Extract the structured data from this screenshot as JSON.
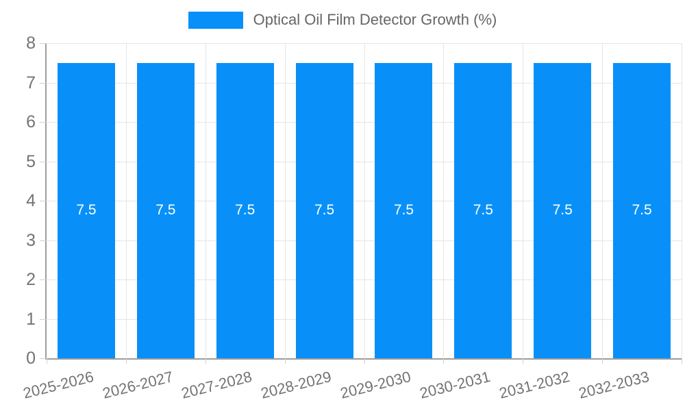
{
  "chart_data": {
    "type": "bar",
    "legend": "Optical Oil Film Detector Growth (%)",
    "legend_position": "top",
    "categories": [
      "2025-2026",
      "2026-2027",
      "2027-2028",
      "2028-2029",
      "2029-2030",
      "2030-2031",
      "2031-2032",
      "2032-2033"
    ],
    "values": [
      7.5,
      7.5,
      7.5,
      7.5,
      7.5,
      7.5,
      7.5,
      7.5
    ],
    "value_labels": [
      "7.5",
      "7.5",
      "7.5",
      "7.5",
      "7.5",
      "7.5",
      "7.5",
      "7.5"
    ],
    "xlabel": "",
    "ylabel": "",
    "ylim": [
      0,
      8
    ],
    "yticks": [
      0,
      1,
      2,
      3,
      4,
      5,
      6,
      7,
      8
    ],
    "grid": true,
    "x_label_rotation_deg": -14,
    "colors": {
      "bar": "#0890f8",
      "value_label": "#ffffff",
      "grid_line": "#e5e5e5",
      "tick_line": "#cfcfcf",
      "axis_line": "#9c9c9c",
      "axis_text": "#737373",
      "legend_text": "#666666"
    }
  }
}
